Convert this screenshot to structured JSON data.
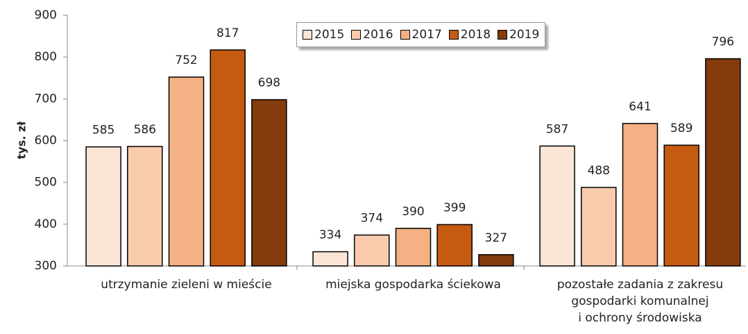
{
  "chart_data": {
    "type": "bar",
    "y_label": "tys. zł",
    "categories": [
      "utrzymanie zieleni w mieście",
      "miejska gospodarka ściekowa",
      "pozostałe zadania z zakresu\ngospodarki komunalnej\ni ochrony środowiska"
    ],
    "series": [
      {
        "name": "2015",
        "color": "#fbe5d6",
        "values": [
          585,
          334,
          587
        ]
      },
      {
        "name": "2016",
        "color": "#f8cbad",
        "values": [
          586,
          374,
          488
        ]
      },
      {
        "name": "2017",
        "color": "#f4b183",
        "values": [
          752,
          390,
          641
        ]
      },
      {
        "name": "2018",
        "color": "#c55a11",
        "values": [
          817,
          399,
          589
        ]
      },
      {
        "name": "2019",
        "color": "#843c0c",
        "values": [
          698,
          327,
          796
        ]
      }
    ],
    "ylim": [
      300,
      900
    ],
    "yticks": [
      300,
      400,
      500,
      600,
      700,
      800,
      900
    ],
    "legend": "top"
  }
}
